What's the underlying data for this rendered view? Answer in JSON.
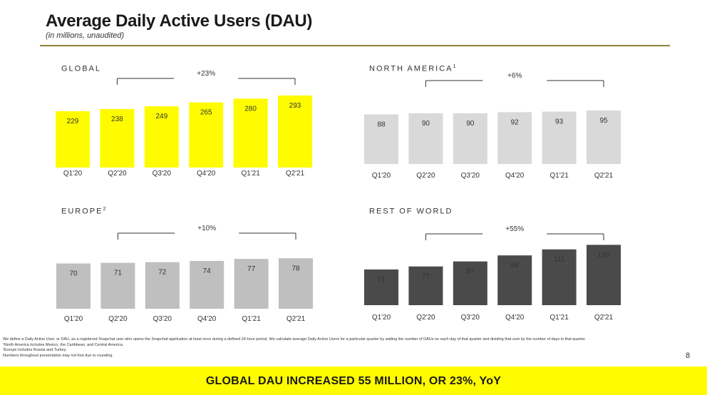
{
  "header": {
    "title": "Average Daily Active Users (DAU)",
    "subtitle": "(in millions, unaudited)"
  },
  "colors": {
    "accent_yellow": "#fffc00",
    "rule_olive": "#8c7f3a",
    "bar_light_gray": "#d9d9d9",
    "bar_mid_gray": "#bfbfbf",
    "bar_dark_gray": "#4a4a4a"
  },
  "chart_data": [
    {
      "type": "bar",
      "title": "GLOBAL",
      "title_sup": "",
      "categories": [
        "Q1'20",
        "Q2'20",
        "Q3'20",
        "Q4'20",
        "Q1'21",
        "Q2'21"
      ],
      "values": [
        229,
        238,
        249,
        265,
        280,
        293
      ],
      "growth_label": "+23%",
      "bar_color": "#fffc00",
      "value_label_color": "#333333"
    },
    {
      "type": "bar",
      "title": "NORTH AMERICA",
      "title_sup": "1",
      "categories": [
        "Q1'20",
        "Q2'20",
        "Q3'20",
        "Q4'20",
        "Q1'21",
        "Q2'21"
      ],
      "values": [
        88,
        90,
        90,
        92,
        93,
        95
      ],
      "growth_label": "+6%",
      "bar_color": "#d9d9d9",
      "value_label_color": "#333333"
    },
    {
      "type": "bar",
      "title": "EUROPE",
      "title_sup": "2",
      "categories": [
        "Q1'20",
        "Q2'20",
        "Q3'20",
        "Q4'20",
        "Q1'21",
        "Q2'21"
      ],
      "values": [
        70,
        71,
        72,
        74,
        77,
        78
      ],
      "growth_label": "+10%",
      "bar_color": "#bfbfbf",
      "value_label_color": "#333333"
    },
    {
      "type": "bar",
      "title": "REST OF WORLD",
      "title_sup": "",
      "categories": [
        "Q1'20",
        "Q2'20",
        "Q3'20",
        "Q4'20",
        "Q1'21",
        "Q2'21"
      ],
      "values": [
        71,
        77,
        87,
        99,
        111,
        120
      ],
      "growth_label": "+55%",
      "bar_color": "#4a4a4a",
      "value_label_color": "#ffffff"
    }
  ],
  "footnotes": {
    "definition": "We define a Daily Active User, or DAU, as a registered Snapchat user who opens the Snapchat application at least once during a defined 24-hour period. We calculate average Daily Active Users for a particular quarter by adding the number of DAUs on each day of that quarter and dividing that sum by the number of days in that quarter.",
    "note1": "¹North America includes Mexico, the Caribbean, and Central America.",
    "note2": "²Europe includes Russia and Turkey.",
    "note3": "Numbers throughout presentation may not foot due to rounding."
  },
  "page_number": "8",
  "banner_text": "GLOBAL DAU INCREASED 55 MILLION, OR 23%, YoY"
}
